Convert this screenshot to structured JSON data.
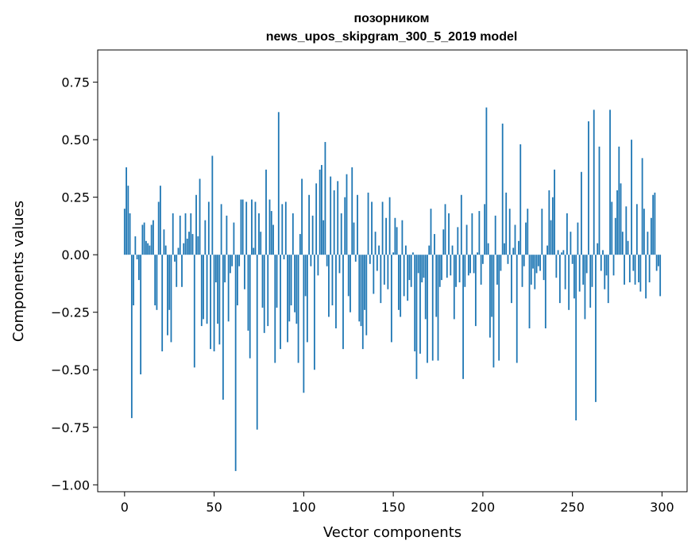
{
  "chart_data": {
    "type": "bar",
    "title_line1": "позорником",
    "title_line2": "news_upos_skipgram_300_5_2019 model",
    "xlabel": "Vector components",
    "ylabel": "Components values",
    "xlim": [
      -15,
      314
    ],
    "ylim": [
      -1.03,
      0.89
    ],
    "x_ticks": [
      0,
      50,
      100,
      150,
      200,
      250,
      300
    ],
    "x_tick_labels": [
      "0",
      "50",
      "100",
      "150",
      "200",
      "250",
      "300"
    ],
    "y_ticks": [
      0.75,
      0.5,
      0.25,
      0.0,
      -0.25,
      -0.5,
      -0.75,
      -1.0
    ],
    "y_tick_labels": [
      "0.75",
      "0.50",
      "0.25",
      "0.00",
      "−0.25",
      "−0.50",
      "−0.75",
      "−1.00"
    ],
    "bar_color": "#1f77b4",
    "grid": false,
    "values": [
      0.2,
      0.38,
      0.3,
      0.18,
      -0.71,
      -0.22,
      0.08,
      -0.02,
      -0.11,
      -0.52,
      0.13,
      0.14,
      0.06,
      0.05,
      0.04,
      0.13,
      0.15,
      -0.22,
      -0.24,
      0.23,
      0.3,
      -0.42,
      0.11,
      0.04,
      -0.35,
      -0.24,
      -0.38,
      0.18,
      -0.03,
      -0.14,
      0.03,
      0.17,
      -0.14,
      0.05,
      0.18,
      0.07,
      0.1,
      0.18,
      0.09,
      -0.49,
      0.26,
      0.08,
      0.33,
      -0.31,
      -0.28,
      0.15,
      -0.3,
      0.23,
      -0.41,
      0.43,
      -0.42,
      -0.12,
      -0.3,
      -0.39,
      0.22,
      -0.63,
      -0.12,
      0.17,
      -0.29,
      -0.08,
      -0.05,
      0.14,
      -0.94,
      -0.22,
      -0.05,
      0.24,
      0.24,
      -0.15,
      0.23,
      -0.33,
      -0.45,
      0.24,
      0.03,
      0.23,
      -0.76,
      0.18,
      0.1,
      -0.23,
      -0.34,
      0.37,
      -0.31,
      0.24,
      0.19,
      0.13,
      -0.47,
      -0.23,
      0.62,
      -0.41,
      0.22,
      -0.02,
      0.23,
      -0.38,
      -0.29,
      -0.22,
      0.18,
      -0.25,
      -0.3,
      -0.47,
      0.09,
      0.33,
      -0.6,
      -0.18,
      -0.38,
      0.26,
      -0.05,
      0.17,
      -0.5,
      0.31,
      -0.09,
      0.37,
      0.39,
      0.15,
      0.49,
      -0.05,
      -0.27,
      0.34,
      -0.22,
      0.28,
      -0.32,
      0.32,
      -0.08,
      0.18,
      -0.41,
      0.25,
      0.35,
      -0.18,
      -0.25,
      0.38,
      0.14,
      -0.03,
      0.26,
      -0.29,
      -0.31,
      -0.41,
      -0.24,
      -0.35,
      0.27,
      -0.04,
      0.23,
      -0.17,
      0.1,
      -0.07,
      0.04,
      -0.21,
      0.23,
      -0.13,
      0.16,
      -0.15,
      0.25,
      -0.38,
      0.01,
      0.16,
      0.12,
      -0.24,
      -0.27,
      0.15,
      -0.18,
      0.04,
      -0.2,
      -0.11,
      -0.14,
      0.01,
      -0.42,
      -0.54,
      -0.08,
      -0.43,
      -0.12,
      -0.1,
      -0.28,
      -0.47,
      0.04,
      0.2,
      -0.46,
      0.09,
      -0.27,
      -0.46,
      -0.14,
      -0.11,
      0.11,
      0.22,
      -0.1,
      0.18,
      -0.09,
      0.04,
      -0.28,
      -0.14,
      0.12,
      -0.12,
      0.26,
      -0.54,
      -0.14,
      0.13,
      -0.09,
      -0.08,
      0.18,
      -0.08,
      -0.31,
      0.01,
      0.19,
      -0.13,
      -0.04,
      0.22,
      0.64,
      0.05,
      -0.36,
      -0.27,
      -0.49,
      0.17,
      -0.13,
      -0.46,
      -0.07,
      0.57,
      0.05,
      0.27,
      -0.04,
      0.2,
      -0.21,
      0.03,
      0.13,
      -0.47,
      0.06,
      0.48,
      -0.14,
      -0.05,
      0.14,
      0.2,
      -0.32,
      -0.13,
      -0.06,
      -0.15,
      -0.08,
      -0.05,
      -0.07,
      0.2,
      -0.11,
      -0.32,
      0.04,
      0.28,
      0.15,
      0.25,
      0.37,
      -0.1,
      0.02,
      -0.21,
      0.01,
      0.02,
      -0.15,
      0.18,
      -0.24,
      0.1,
      -0.04,
      -0.19,
      -0.72,
      0.14,
      -0.16,
      0.36,
      -0.13,
      -0.28,
      -0.08,
      0.58,
      -0.23,
      -0.14,
      0.63,
      -0.64,
      0.05,
      0.47,
      -0.07,
      0.02,
      -0.15,
      -0.09,
      -0.21,
      0.63,
      0.23,
      -0.09,
      0.16,
      0.28,
      0.47,
      0.31,
      0.1,
      -0.13,
      0.21,
      0.06,
      -0.12,
      0.5,
      -0.07,
      -0.13,
      0.22,
      -0.12,
      -0.16,
      0.42,
      0.2,
      -0.19,
      0.1,
      -0.12,
      0.16,
      0.26,
      0.27,
      -0.07,
      -0.05,
      -0.18
    ]
  }
}
